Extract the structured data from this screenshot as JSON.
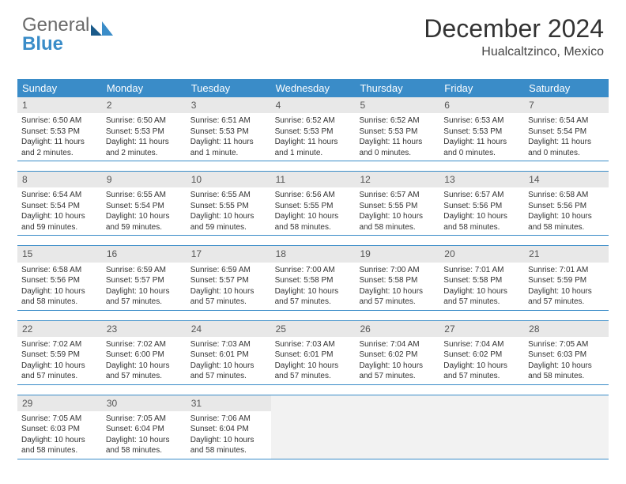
{
  "logo": {
    "text1": "General",
    "text2": "Blue"
  },
  "title": "December 2024",
  "location": "Hualcaltzinco, Mexico",
  "colors": {
    "accent": "#3a8cc8",
    "header_bg": "#3a8cc8",
    "daynum_bg": "#e8e8e8",
    "border": "#3a8cc8",
    "empty_bg": "#f2f2f2"
  },
  "weekdays": [
    "Sunday",
    "Monday",
    "Tuesday",
    "Wednesday",
    "Thursday",
    "Friday",
    "Saturday"
  ],
  "weeks": [
    [
      {
        "n": "1",
        "sr": "Sunrise: 6:50 AM",
        "ss": "Sunset: 5:53 PM",
        "dl": "Daylight: 11 hours and 2 minutes."
      },
      {
        "n": "2",
        "sr": "Sunrise: 6:50 AM",
        "ss": "Sunset: 5:53 PM",
        "dl": "Daylight: 11 hours and 2 minutes."
      },
      {
        "n": "3",
        "sr": "Sunrise: 6:51 AM",
        "ss": "Sunset: 5:53 PM",
        "dl": "Daylight: 11 hours and 1 minute."
      },
      {
        "n": "4",
        "sr": "Sunrise: 6:52 AM",
        "ss": "Sunset: 5:53 PM",
        "dl": "Daylight: 11 hours and 1 minute."
      },
      {
        "n": "5",
        "sr": "Sunrise: 6:52 AM",
        "ss": "Sunset: 5:53 PM",
        "dl": "Daylight: 11 hours and 0 minutes."
      },
      {
        "n": "6",
        "sr": "Sunrise: 6:53 AM",
        "ss": "Sunset: 5:53 PM",
        "dl": "Daylight: 11 hours and 0 minutes."
      },
      {
        "n": "7",
        "sr": "Sunrise: 6:54 AM",
        "ss": "Sunset: 5:54 PM",
        "dl": "Daylight: 11 hours and 0 minutes."
      }
    ],
    [
      {
        "n": "8",
        "sr": "Sunrise: 6:54 AM",
        "ss": "Sunset: 5:54 PM",
        "dl": "Daylight: 10 hours and 59 minutes."
      },
      {
        "n": "9",
        "sr": "Sunrise: 6:55 AM",
        "ss": "Sunset: 5:54 PM",
        "dl": "Daylight: 10 hours and 59 minutes."
      },
      {
        "n": "10",
        "sr": "Sunrise: 6:55 AM",
        "ss": "Sunset: 5:55 PM",
        "dl": "Daylight: 10 hours and 59 minutes."
      },
      {
        "n": "11",
        "sr": "Sunrise: 6:56 AM",
        "ss": "Sunset: 5:55 PM",
        "dl": "Daylight: 10 hours and 58 minutes."
      },
      {
        "n": "12",
        "sr": "Sunrise: 6:57 AM",
        "ss": "Sunset: 5:55 PM",
        "dl": "Daylight: 10 hours and 58 minutes."
      },
      {
        "n": "13",
        "sr": "Sunrise: 6:57 AM",
        "ss": "Sunset: 5:56 PM",
        "dl": "Daylight: 10 hours and 58 minutes."
      },
      {
        "n": "14",
        "sr": "Sunrise: 6:58 AM",
        "ss": "Sunset: 5:56 PM",
        "dl": "Daylight: 10 hours and 58 minutes."
      }
    ],
    [
      {
        "n": "15",
        "sr": "Sunrise: 6:58 AM",
        "ss": "Sunset: 5:56 PM",
        "dl": "Daylight: 10 hours and 58 minutes."
      },
      {
        "n": "16",
        "sr": "Sunrise: 6:59 AM",
        "ss": "Sunset: 5:57 PM",
        "dl": "Daylight: 10 hours and 57 minutes."
      },
      {
        "n": "17",
        "sr": "Sunrise: 6:59 AM",
        "ss": "Sunset: 5:57 PM",
        "dl": "Daylight: 10 hours and 57 minutes."
      },
      {
        "n": "18",
        "sr": "Sunrise: 7:00 AM",
        "ss": "Sunset: 5:58 PM",
        "dl": "Daylight: 10 hours and 57 minutes."
      },
      {
        "n": "19",
        "sr": "Sunrise: 7:00 AM",
        "ss": "Sunset: 5:58 PM",
        "dl": "Daylight: 10 hours and 57 minutes."
      },
      {
        "n": "20",
        "sr": "Sunrise: 7:01 AM",
        "ss": "Sunset: 5:58 PM",
        "dl": "Daylight: 10 hours and 57 minutes."
      },
      {
        "n": "21",
        "sr": "Sunrise: 7:01 AM",
        "ss": "Sunset: 5:59 PM",
        "dl": "Daylight: 10 hours and 57 minutes."
      }
    ],
    [
      {
        "n": "22",
        "sr": "Sunrise: 7:02 AM",
        "ss": "Sunset: 5:59 PM",
        "dl": "Daylight: 10 hours and 57 minutes."
      },
      {
        "n": "23",
        "sr": "Sunrise: 7:02 AM",
        "ss": "Sunset: 6:00 PM",
        "dl": "Daylight: 10 hours and 57 minutes."
      },
      {
        "n": "24",
        "sr": "Sunrise: 7:03 AM",
        "ss": "Sunset: 6:01 PM",
        "dl": "Daylight: 10 hours and 57 minutes."
      },
      {
        "n": "25",
        "sr": "Sunrise: 7:03 AM",
        "ss": "Sunset: 6:01 PM",
        "dl": "Daylight: 10 hours and 57 minutes."
      },
      {
        "n": "26",
        "sr": "Sunrise: 7:04 AM",
        "ss": "Sunset: 6:02 PM",
        "dl": "Daylight: 10 hours and 57 minutes."
      },
      {
        "n": "27",
        "sr": "Sunrise: 7:04 AM",
        "ss": "Sunset: 6:02 PM",
        "dl": "Daylight: 10 hours and 57 minutes."
      },
      {
        "n": "28",
        "sr": "Sunrise: 7:05 AM",
        "ss": "Sunset: 6:03 PM",
        "dl": "Daylight: 10 hours and 58 minutes."
      }
    ],
    [
      {
        "n": "29",
        "sr": "Sunrise: 7:05 AM",
        "ss": "Sunset: 6:03 PM",
        "dl": "Daylight: 10 hours and 58 minutes."
      },
      {
        "n": "30",
        "sr": "Sunrise: 7:05 AM",
        "ss": "Sunset: 6:04 PM",
        "dl": "Daylight: 10 hours and 58 minutes."
      },
      {
        "n": "31",
        "sr": "Sunrise: 7:06 AM",
        "ss": "Sunset: 6:04 PM",
        "dl": "Daylight: 10 hours and 58 minutes."
      },
      null,
      null,
      null,
      null
    ]
  ]
}
